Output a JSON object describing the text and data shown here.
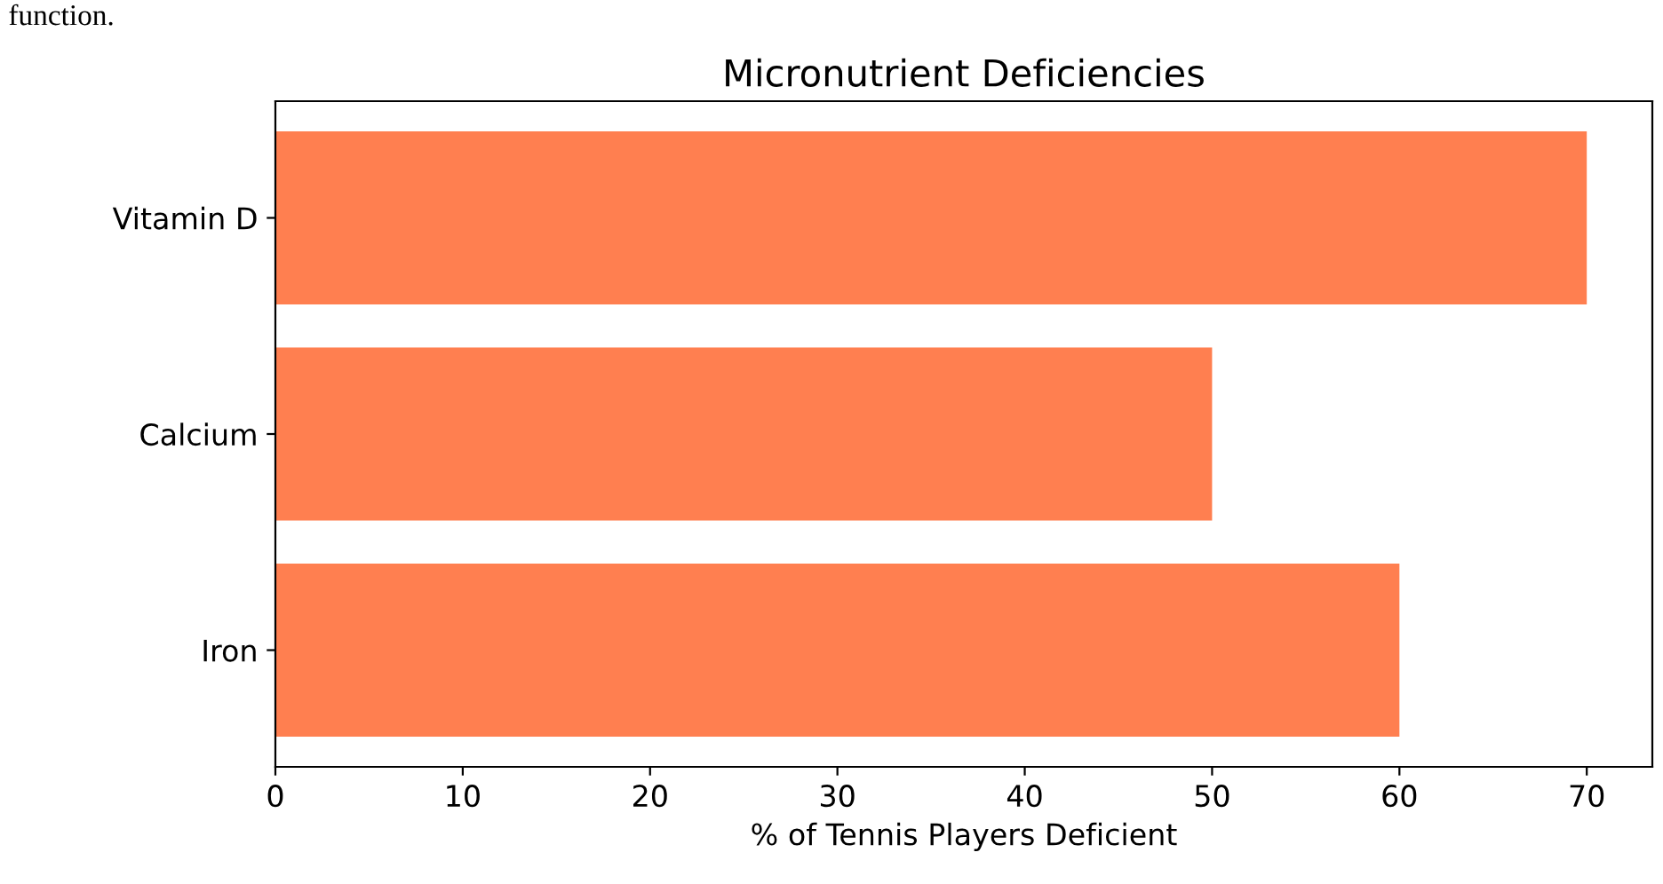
{
  "chart_data": {
    "type": "bar",
    "orientation": "horizontal",
    "title": "Micronutrient Deficiencies",
    "xlabel": "% of Tennis Players Deficient",
    "categories": [
      "Vitamin D",
      "Calcium",
      "Iron"
    ],
    "series": [
      {
        "color": "#ff7f50",
        "values": [
          70,
          50,
          60
        ]
      }
    ],
    "xlim": [
      0,
      73.5
    ],
    "xticks": [
      0,
      10,
      20,
      30,
      40,
      50,
      60,
      70
    ],
    "grid": false,
    "legend": false,
    "annotations": [
      "function."
    ]
  }
}
